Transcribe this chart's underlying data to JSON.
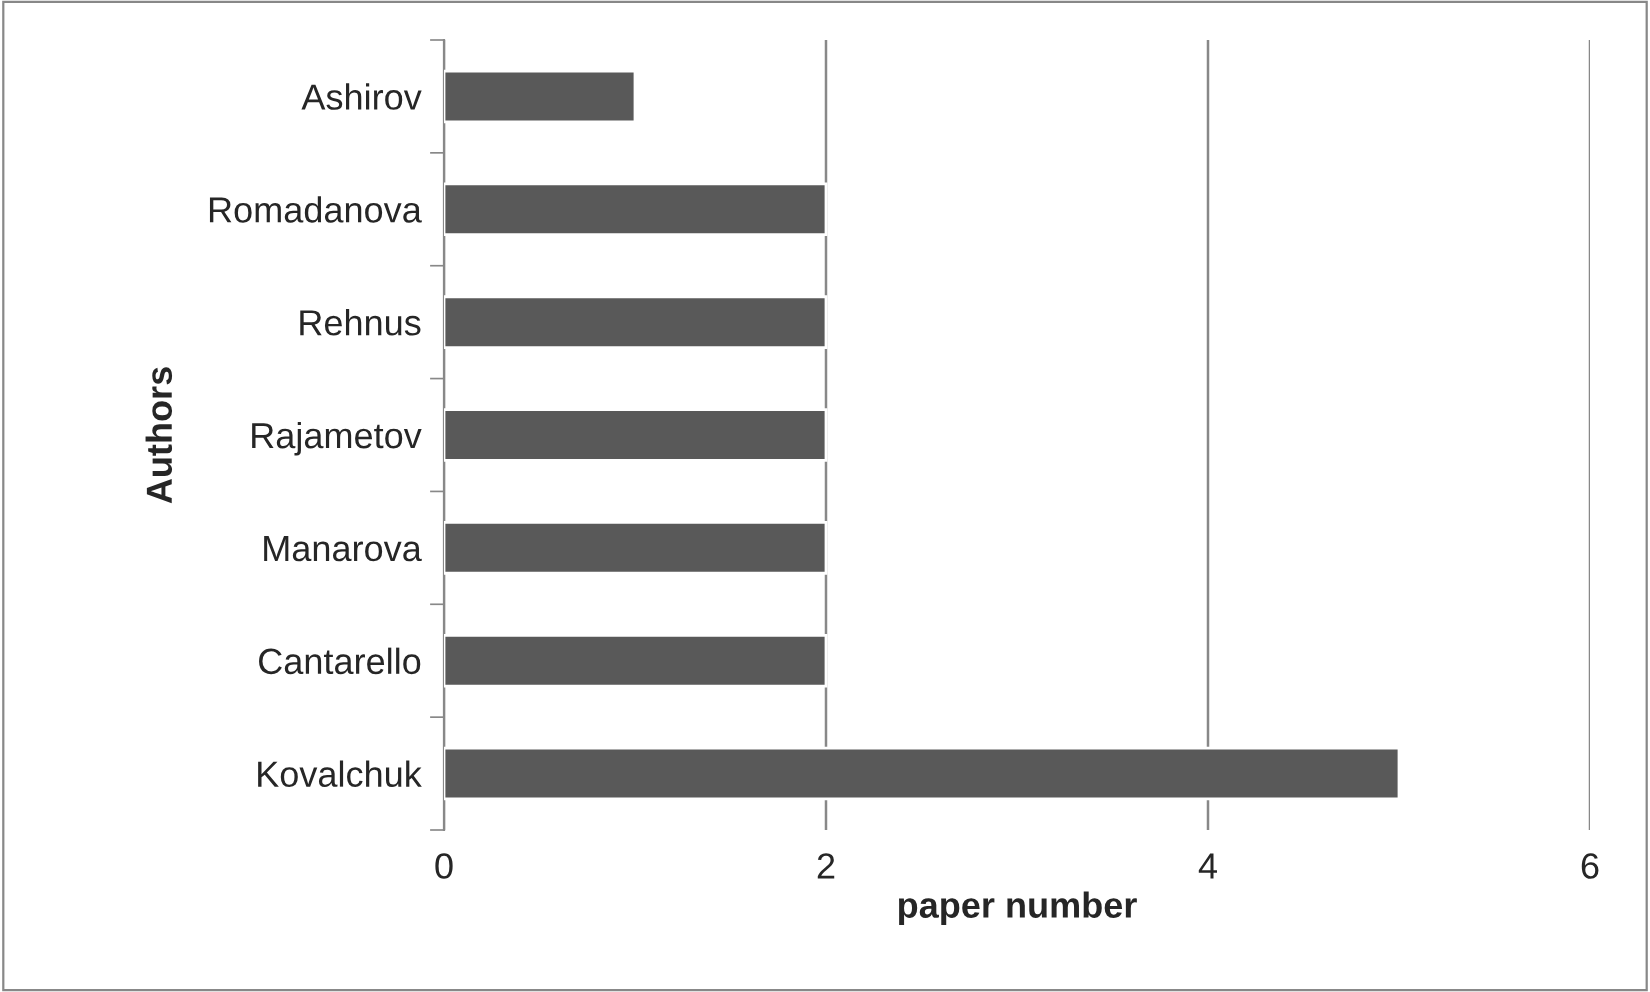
{
  "chart_data": {
    "type": "bar",
    "orientation": "horizontal",
    "xlabel": "paper number",
    "ylabel": "Authors",
    "categories": [
      "Ashirov",
      "Romadanova",
      "Rehnus",
      "Rajametov",
      "Manarova",
      "Cantarello",
      "Kovalchuk"
    ],
    "values": [
      1,
      2,
      2,
      2,
      2,
      2,
      5
    ],
    "color": "#595959",
    "xlim": [
      0,
      6
    ],
    "xticks": [
      0,
      2,
      4,
      6
    ],
    "grid": "x",
    "legend": false
  }
}
